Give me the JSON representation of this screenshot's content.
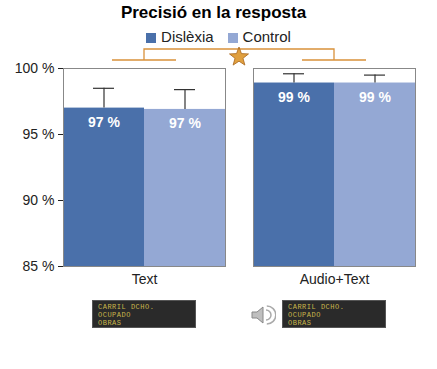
{
  "chart_data": {
    "type": "bar",
    "title": "Precisió en la resposta",
    "categories": [
      "Text",
      "Audio+Text"
    ],
    "series": [
      {
        "name": "Dislèxia",
        "color": "#4a70aa",
        "values": [
          97.0,
          98.9
        ],
        "errors": [
          1.5,
          0.7
        ],
        "value_labels": [
          "97 %",
          "99 %"
        ]
      },
      {
        "name": "Control",
        "color": "#94a8d4",
        "values": [
          96.9,
          98.9
        ],
        "errors": [
          1.5,
          0.6
        ],
        "value_labels": [
          "97 %",
          "99 %"
        ]
      }
    ],
    "ylim": [
      85,
      100
    ],
    "yticks": [
      {
        "value": 85,
        "label": "85 %"
      },
      {
        "value": 90,
        "label": "90 %"
      },
      {
        "value": 95,
        "label": "95 %"
      },
      {
        "value": 100,
        "label": "100 %"
      }
    ],
    "grid": false,
    "legend": "top",
    "data_labels": true,
    "annotations": [
      "CARRIL DCHO.",
      "OCUPADO",
      "OBRAS"
    ]
  }
}
